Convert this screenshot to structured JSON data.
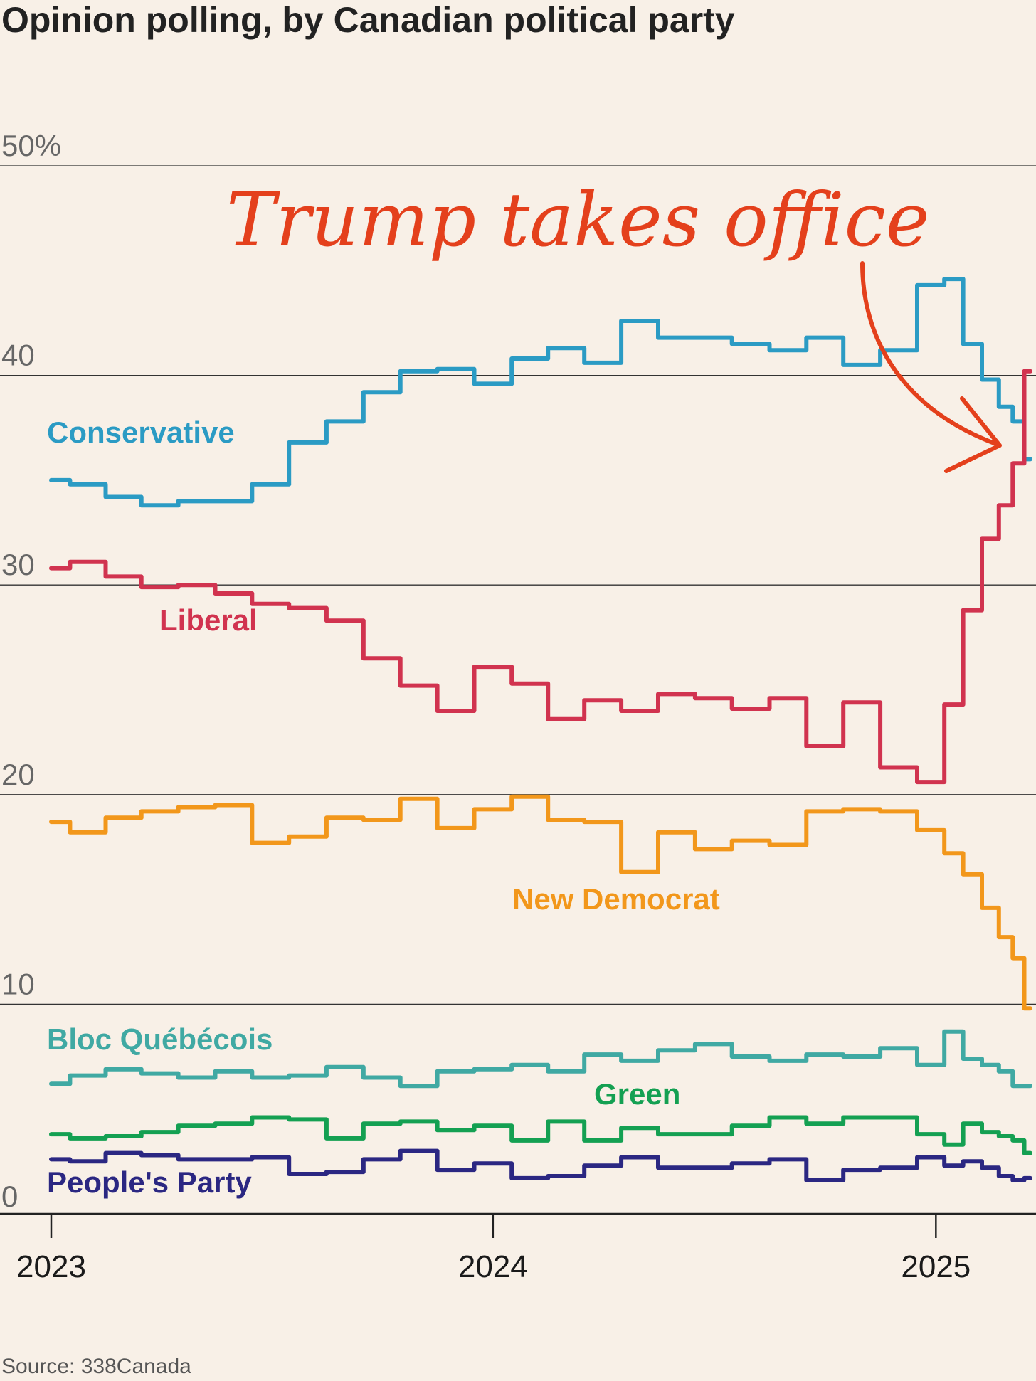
{
  "chart_data": {
    "type": "line",
    "title": "Opinion polling, by Canadian political party",
    "source": "Source: 338Canada",
    "annotation": {
      "text": "Trump takes office",
      "color": "#e4401c"
    },
    "x_ticks": [
      "2023",
      "2024",
      "2025"
    ],
    "y_ticks": [
      "50%",
      "40",
      "30",
      "20",
      "10",
      "0"
    ],
    "y_tick_values": [
      50,
      40,
      30,
      20,
      10,
      0
    ],
    "ylim": [
      0,
      50
    ],
    "xlim": [
      "2023-01-01",
      "2025-03-20"
    ],
    "grid": true,
    "series": [
      {
        "name": "Conservative",
        "color": "#2b9bc4",
        "x": [
          "2023-01-01",
          "2023-02-01",
          "2023-03-01",
          "2023-04-01",
          "2023-05-01",
          "2023-06-01",
          "2023-07-01",
          "2023-08-01",
          "2023-09-01",
          "2023-10-01",
          "2023-11-01",
          "2023-12-01",
          "2024-01-01",
          "2024-02-01",
          "2024-03-01",
          "2024-04-01",
          "2024-05-01",
          "2024-06-01",
          "2024-07-01",
          "2024-08-01",
          "2024-09-01",
          "2024-10-01",
          "2024-11-01",
          "2024-12-01",
          "2025-01-01",
          "2025-01-15",
          "2025-02-01",
          "2025-02-15",
          "2025-03-01",
          "2025-03-10",
          "2025-03-20"
        ],
        "values": [
          35,
          34.8,
          34.2,
          33.8,
          34,
          34,
          34.8,
          36.8,
          37.8,
          39.2,
          40.2,
          40.3,
          39.6,
          40.8,
          41.3,
          40.6,
          42.6,
          41.8,
          41.8,
          41.5,
          41.2,
          41.8,
          40.5,
          41.2,
          44.3,
          44.6,
          41.5,
          39.8,
          38.5,
          37.8,
          36
        ]
      },
      {
        "name": "Liberal",
        "color": "#d1334f",
        "x": [
          "2023-01-01",
          "2023-02-01",
          "2023-03-01",
          "2023-04-01",
          "2023-05-01",
          "2023-06-01",
          "2023-07-01",
          "2023-08-01",
          "2023-09-01",
          "2023-10-01",
          "2023-11-01",
          "2023-12-01",
          "2024-01-01",
          "2024-02-01",
          "2024-03-01",
          "2024-04-01",
          "2024-05-01",
          "2024-06-01",
          "2024-07-01",
          "2024-08-01",
          "2024-09-01",
          "2024-10-01",
          "2024-11-01",
          "2024-12-01",
          "2025-01-01",
          "2025-01-15",
          "2025-02-01",
          "2025-02-15",
          "2025-03-01",
          "2025-03-10",
          "2025-03-20"
        ],
        "values": [
          30.8,
          31.1,
          30.4,
          29.9,
          30,
          29.6,
          29.1,
          28.9,
          28.3,
          26.5,
          25.2,
          24,
          26.1,
          25.3,
          23.6,
          24.5,
          24,
          24.8,
          24.6,
          24.1,
          24.6,
          22.3,
          24.4,
          21.3,
          20.6,
          24.3,
          28.8,
          32.2,
          33.8,
          35.8,
          40.2
        ]
      },
      {
        "name": "New Democrat",
        "color": "#f2971b",
        "x": [
          "2023-01-01",
          "2023-02-01",
          "2023-03-01",
          "2023-04-01",
          "2023-05-01",
          "2023-06-01",
          "2023-07-01",
          "2023-08-01",
          "2023-09-01",
          "2023-10-01",
          "2023-11-01",
          "2023-12-01",
          "2024-01-01",
          "2024-02-01",
          "2024-03-01",
          "2024-04-01",
          "2024-05-01",
          "2024-06-01",
          "2024-07-01",
          "2024-08-01",
          "2024-09-01",
          "2024-10-01",
          "2024-11-01",
          "2024-12-01",
          "2025-01-01",
          "2025-01-15",
          "2025-02-01",
          "2025-02-15",
          "2025-03-01",
          "2025-03-10",
          "2025-03-20"
        ],
        "values": [
          18.7,
          18.2,
          18.9,
          19.2,
          19.4,
          19.5,
          17.7,
          18,
          18.9,
          18.8,
          19.8,
          18.4,
          19.3,
          19.9,
          18.8,
          18.7,
          16.3,
          18.2,
          17.4,
          17.8,
          17.6,
          19.2,
          19.3,
          19.2,
          18.3,
          17.2,
          16.2,
          14.6,
          13.2,
          12.2,
          9.8
        ]
      },
      {
        "name": "Bloc Québécois",
        "color": "#40a9a3",
        "x": [
          "2023-01-01",
          "2023-02-01",
          "2023-03-01",
          "2023-04-01",
          "2023-05-01",
          "2023-06-01",
          "2023-07-01",
          "2023-08-01",
          "2023-09-01",
          "2023-10-01",
          "2023-11-01",
          "2023-12-01",
          "2024-01-01",
          "2024-02-01",
          "2024-03-01",
          "2024-04-01",
          "2024-05-01",
          "2024-06-01",
          "2024-07-01",
          "2024-08-01",
          "2024-09-01",
          "2024-10-01",
          "2024-11-01",
          "2024-12-01",
          "2025-01-01",
          "2025-01-15",
          "2025-02-01",
          "2025-02-15",
          "2025-03-01",
          "2025-03-10",
          "2025-03-20"
        ],
        "values": [
          6.2,
          6.6,
          6.9,
          6.7,
          6.5,
          6.8,
          6.5,
          6.6,
          7,
          6.5,
          6.1,
          6.8,
          6.9,
          7.1,
          6.8,
          7.6,
          7.3,
          7.8,
          8.1,
          7.5,
          7.3,
          7.6,
          7.5,
          7.9,
          7.1,
          8.7,
          7.4,
          7.1,
          6.8,
          6.1,
          6.1
        ]
      },
      {
        "name": "Green",
        "color": "#14a052",
        "x": [
          "2023-01-01",
          "2023-02-01",
          "2023-03-01",
          "2023-04-01",
          "2023-05-01",
          "2023-06-01",
          "2023-07-01",
          "2023-08-01",
          "2023-09-01",
          "2023-10-01",
          "2023-11-01",
          "2023-12-01",
          "2024-01-01",
          "2024-02-01",
          "2024-03-01",
          "2024-04-01",
          "2024-05-01",
          "2024-06-01",
          "2024-07-01",
          "2024-08-01",
          "2024-09-01",
          "2024-10-01",
          "2024-11-01",
          "2024-12-01",
          "2025-01-01",
          "2025-01-15",
          "2025-02-01",
          "2025-02-15",
          "2025-03-01",
          "2025-03-10",
          "2025-03-20"
        ],
        "values": [
          3.8,
          3.6,
          3.7,
          3.9,
          4.2,
          4.3,
          4.6,
          4.5,
          3.6,
          4.3,
          4.4,
          4,
          4.2,
          3.5,
          4.4,
          3.5,
          4.1,
          3.8,
          3.8,
          4.2,
          4.6,
          4.3,
          4.6,
          4.6,
          3.8,
          3.3,
          4.3,
          3.9,
          3.7,
          3.5,
          2.9
        ]
      },
      {
        "name": "People's Party",
        "color": "#2b2782",
        "x": [
          "2023-01-01",
          "2023-02-01",
          "2023-03-01",
          "2023-04-01",
          "2023-05-01",
          "2023-06-01",
          "2023-07-01",
          "2023-08-01",
          "2023-09-01",
          "2023-10-01",
          "2023-11-01",
          "2023-12-01",
          "2024-01-01",
          "2024-02-01",
          "2024-03-01",
          "2024-04-01",
          "2024-05-01",
          "2024-06-01",
          "2024-07-01",
          "2024-08-01",
          "2024-09-01",
          "2024-10-01",
          "2024-11-01",
          "2024-12-01",
          "2025-01-01",
          "2025-01-15",
          "2025-02-01",
          "2025-02-15",
          "2025-03-01",
          "2025-03-10",
          "2025-03-20"
        ],
        "values": [
          2.6,
          2.5,
          2.9,
          2.8,
          2.6,
          2.6,
          2.7,
          1.9,
          2,
          2.6,
          3,
          2.1,
          2.4,
          1.7,
          1.8,
          2.3,
          2.7,
          2.2,
          2.2,
          2.4,
          2.6,
          1.6,
          2.1,
          2.2,
          2.7,
          2.3,
          2.5,
          2.2,
          1.8,
          1.6,
          1.7
        ]
      }
    ]
  }
}
